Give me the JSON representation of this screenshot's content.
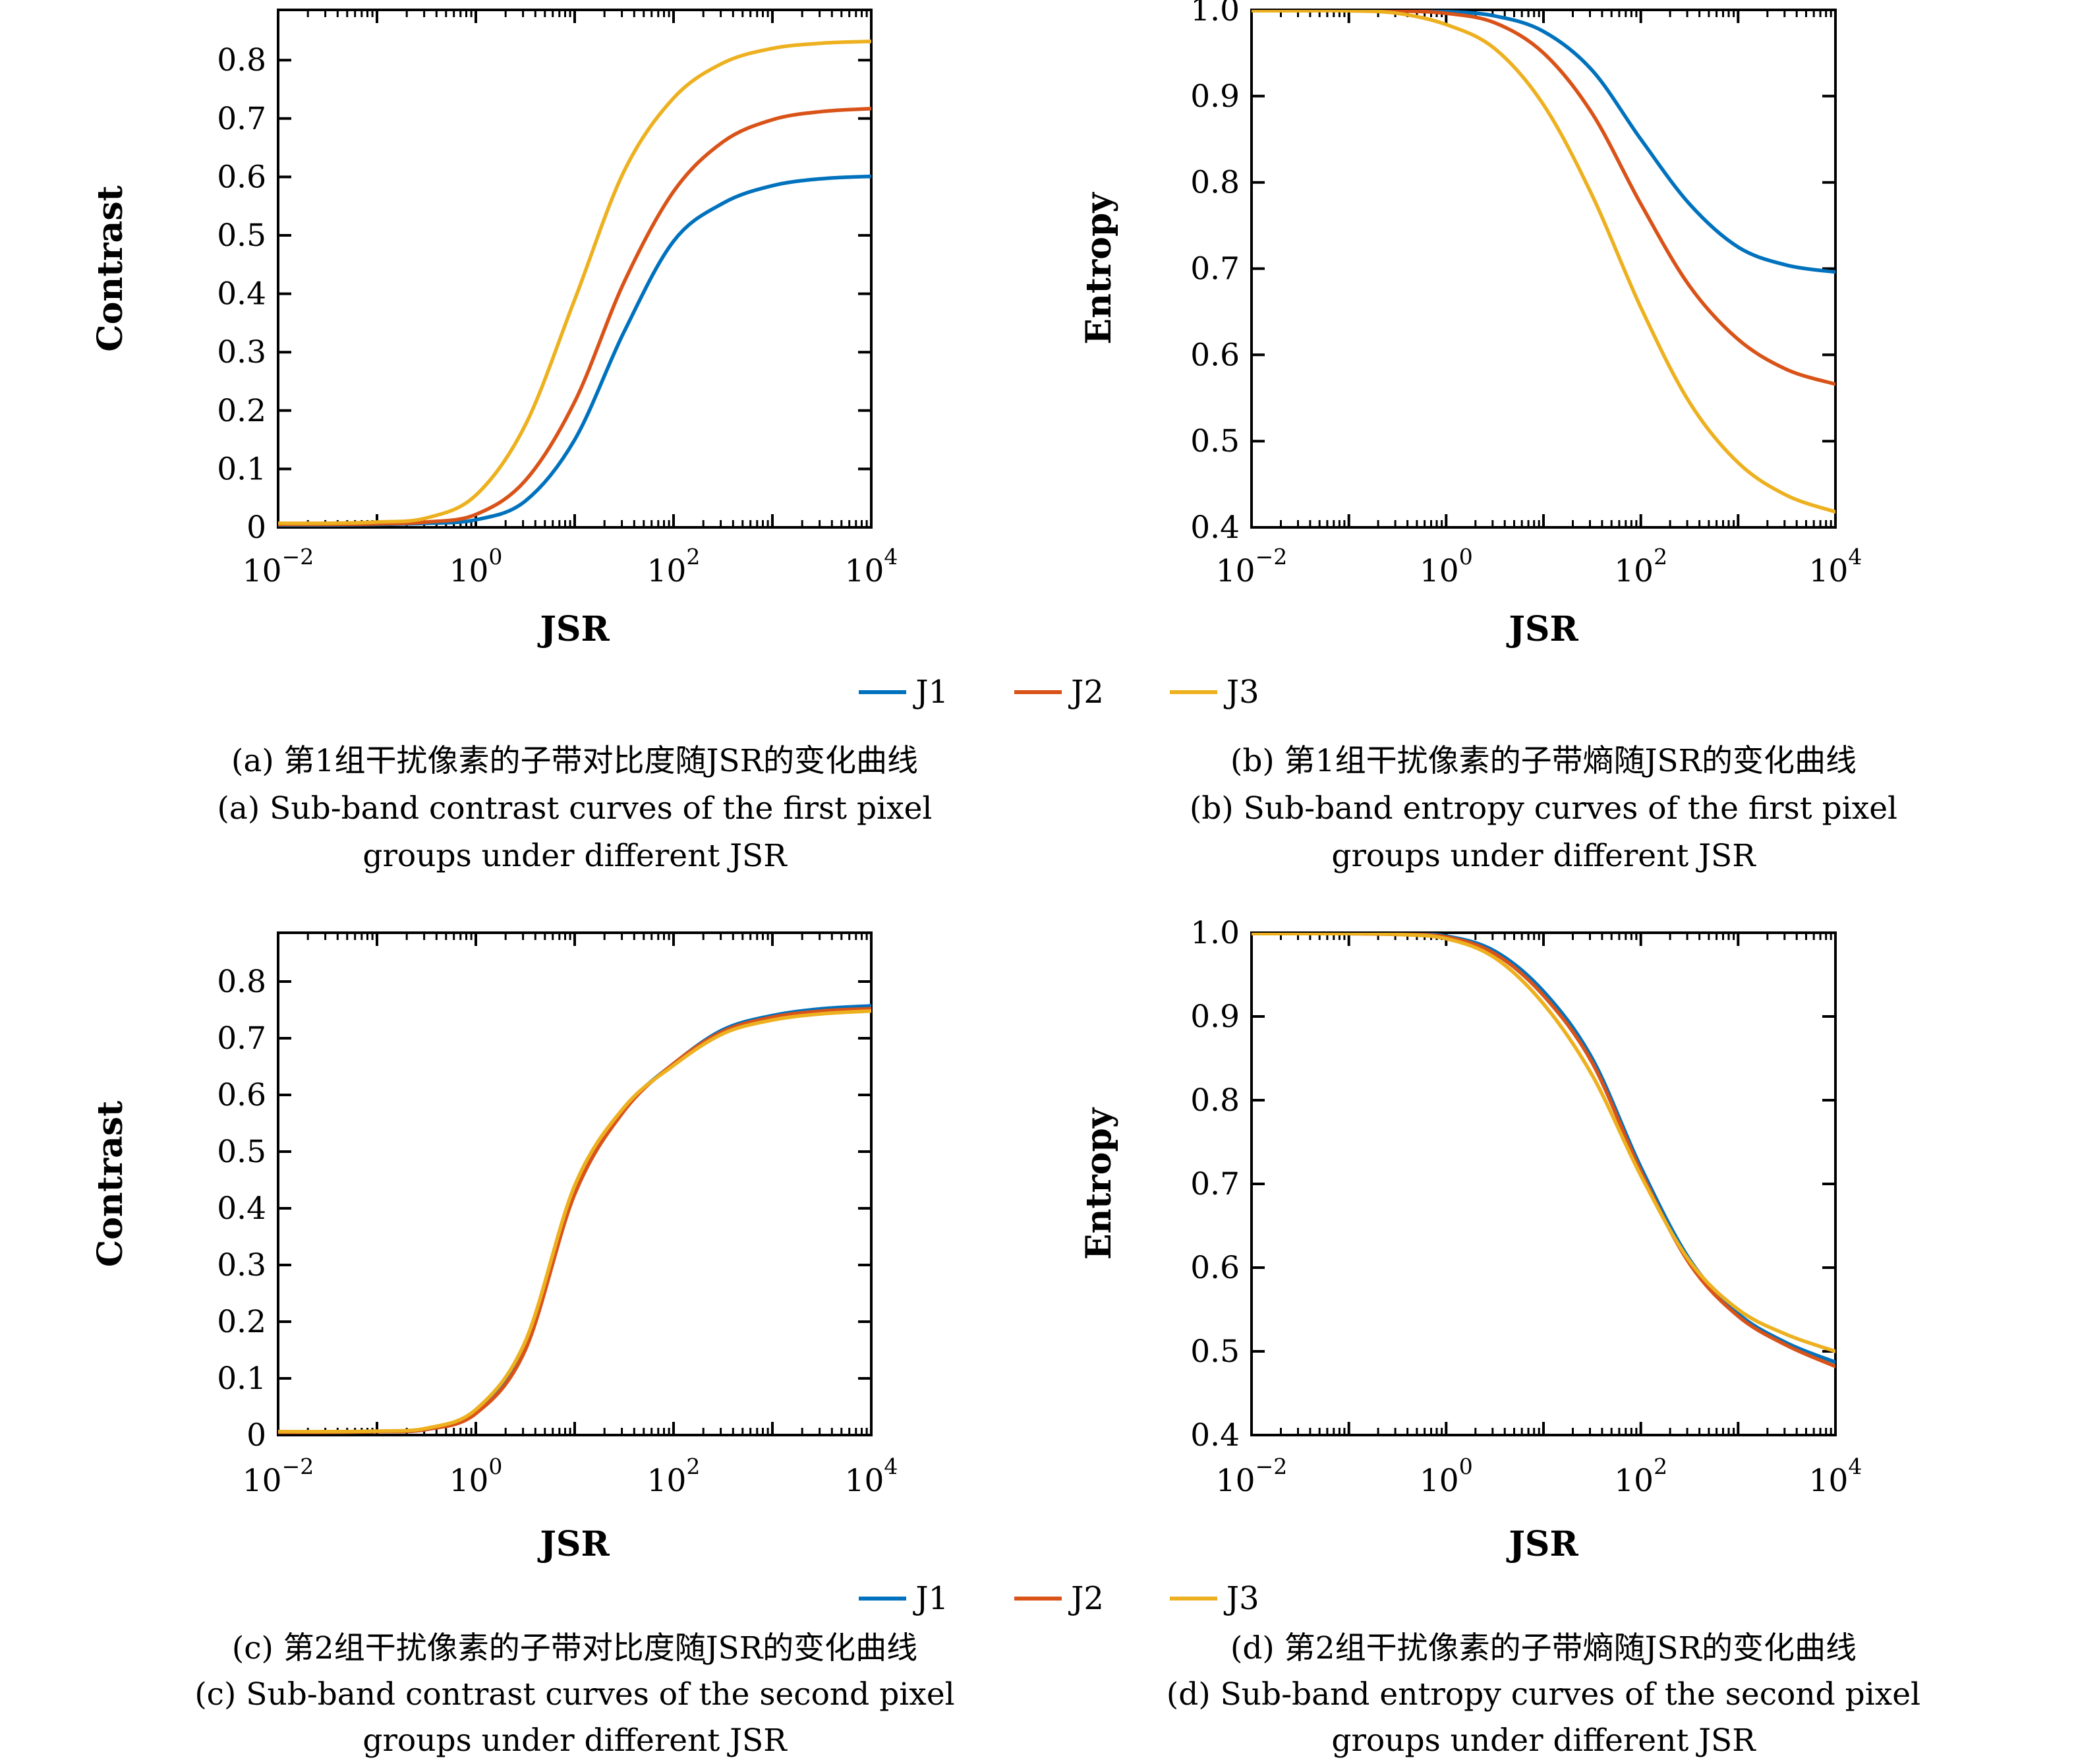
{
  "legend": {
    "items": [
      {
        "label": "J1",
        "color": "#0072BD"
      },
      {
        "label": "J2",
        "color": "#D95319"
      },
      {
        "label": "J3",
        "color": "#EDB120"
      }
    ]
  },
  "captions": {
    "a": {
      "zh": "(a) 第1组干扰像素的子带对比度随JSR的变化曲线",
      "en1": "(a) Sub-band contrast curves of the first pixel",
      "en2": "groups under different JSR"
    },
    "b": {
      "zh": "(b) 第1组干扰像素的子带熵随JSR的变化曲线",
      "en1": "(b) Sub-band entropy curves of the first pixel",
      "en2": "groups under different JSR"
    },
    "c": {
      "zh": "(c) 第2组干扰像素的子带对比度随JSR的变化曲线",
      "en1": "(c) Sub-band contrast curves of the second pixel",
      "en2": "groups under different JSR"
    },
    "d": {
      "zh": "(d) 第2组干扰像素的子带熵随JSR的变化曲线",
      "en1": "(d) Sub-band entropy curves of the second pixel",
      "en2": "groups under different JSR"
    }
  },
  "chart_data": [
    {
      "id": "a",
      "type": "line",
      "xlabel": "JSR",
      "ylabel": "Contrast",
      "xscale": "log10",
      "xlim_log10": [
        -2,
        4
      ],
      "ylim": [
        0,
        0.886
      ],
      "yticks": [
        0,
        0.1,
        0.2,
        0.3,
        0.4,
        0.5,
        0.6,
        0.7,
        0.8
      ],
      "ytick_labels": [
        "0",
        "0.1",
        "0.2",
        "0.3",
        "0.4",
        "0.5",
        "0.6",
        "0.7",
        "0.8"
      ],
      "xticks_log10": [
        -2,
        0,
        2,
        4
      ],
      "xtick_exponents": [
        "-2",
        "0",
        "2",
        "4"
      ],
      "x_log10": [
        -2,
        -1.5,
        -1,
        -0.5,
        0,
        0.5,
        1,
        1.5,
        2,
        2.5,
        3,
        3.5,
        4
      ],
      "series": [
        {
          "name": "J1",
          "color": "#0072BD",
          "values": [
            0.004,
            0.004,
            0.005,
            0.007,
            0.013,
            0.045,
            0.15,
            0.335,
            0.49,
            0.555,
            0.585,
            0.597,
            0.601
          ]
        },
        {
          "name": "J2",
          "color": "#D95319",
          "values": [
            0.005,
            0.005,
            0.006,
            0.009,
            0.022,
            0.08,
            0.215,
            0.42,
            0.575,
            0.66,
            0.698,
            0.712,
            0.717
          ]
        },
        {
          "name": "J3",
          "color": "#EDB120",
          "values": [
            0.007,
            0.007,
            0.009,
            0.016,
            0.055,
            0.175,
            0.39,
            0.61,
            0.735,
            0.795,
            0.82,
            0.829,
            0.832
          ]
        }
      ]
    },
    {
      "id": "b",
      "type": "line",
      "xlabel": "JSR",
      "ylabel": "Entropy",
      "xscale": "log10",
      "xlim_log10": [
        -2,
        4
      ],
      "ylim": [
        0.4,
        1.0
      ],
      "yticks": [
        0.4,
        0.5,
        0.6,
        0.7,
        0.8,
        0.9,
        1.0
      ],
      "ytick_labels": [
        "0.4",
        "0.5",
        "0.6",
        "0.7",
        "0.8",
        "0.9",
        "1.0"
      ],
      "xticks_log10": [
        -2,
        0,
        2,
        4
      ],
      "xtick_exponents": [
        "-2",
        "0",
        "2",
        "4"
      ],
      "x_log10": [
        -2,
        -1.5,
        -1,
        -0.5,
        0,
        0.5,
        1,
        1.5,
        2,
        2.5,
        3,
        3.5,
        4
      ],
      "series": [
        {
          "name": "J1",
          "color": "#0072BD",
          "values": [
            1.0,
            1.0,
            1.0,
            0.999,
            0.998,
            0.993,
            0.975,
            0.93,
            0.85,
            0.775,
            0.725,
            0.704,
            0.696
          ]
        },
        {
          "name": "J2",
          "color": "#D95319",
          "values": [
            1.0,
            1.0,
            0.999,
            0.999,
            0.996,
            0.985,
            0.95,
            0.88,
            0.775,
            0.68,
            0.618,
            0.583,
            0.566
          ]
        },
        {
          "name": "J3",
          "color": "#EDB120",
          "values": [
            0.999,
            0.999,
            0.999,
            0.996,
            0.983,
            0.955,
            0.89,
            0.785,
            0.655,
            0.545,
            0.475,
            0.437,
            0.418
          ]
        }
      ]
    },
    {
      "id": "c",
      "type": "line",
      "xlabel": "JSR",
      "ylabel": "Contrast",
      "xscale": "log10",
      "xlim_log10": [
        -2,
        4
      ],
      "ylim": [
        0,
        0.886
      ],
      "yticks": [
        0,
        0.1,
        0.2,
        0.3,
        0.4,
        0.5,
        0.6,
        0.7,
        0.8
      ],
      "ytick_labels": [
        "0",
        "0.1",
        "0.2",
        "0.3",
        "0.4",
        "0.5",
        "0.6",
        "0.7",
        "0.8"
      ],
      "xticks_log10": [
        -2,
        0,
        2,
        4
      ],
      "xtick_exponents": [
        "-2",
        "0",
        "2",
        "4"
      ],
      "x_log10": [
        -2,
        -1.5,
        -1,
        -0.5,
        0,
        0.5,
        1,
        1.5,
        2,
        2.5,
        3,
        3.5,
        4
      ],
      "series": [
        {
          "name": "J1",
          "color": "#0072BD",
          "values": [
            0.005,
            0.005,
            0.006,
            0.01,
            0.04,
            0.155,
            0.43,
            0.575,
            0.655,
            0.715,
            0.74,
            0.752,
            0.757
          ]
        },
        {
          "name": "J2",
          "color": "#D95319",
          "values": [
            0.005,
            0.005,
            0.006,
            0.01,
            0.038,
            0.15,
            0.425,
            0.572,
            0.655,
            0.712,
            0.737,
            0.748,
            0.752
          ]
        },
        {
          "name": "J3",
          "color": "#EDB120",
          "values": [
            0.006,
            0.006,
            0.007,
            0.012,
            0.045,
            0.165,
            0.44,
            0.578,
            0.652,
            0.708,
            0.732,
            0.743,
            0.748
          ]
        }
      ]
    },
    {
      "id": "d",
      "type": "line",
      "xlabel": "JSR",
      "ylabel": "Entropy",
      "xscale": "log10",
      "xlim_log10": [
        -2,
        4
      ],
      "ylim": [
        0.4,
        1.0
      ],
      "yticks": [
        0.4,
        0.5,
        0.6,
        0.7,
        0.8,
        0.9,
        1.0
      ],
      "ytick_labels": [
        "0.4",
        "0.5",
        "0.6",
        "0.7",
        "0.8",
        "0.9",
        "1.0"
      ],
      "xticks_log10": [
        -2,
        0,
        2,
        4
      ],
      "xtick_exponents": [
        "-2",
        "0",
        "2",
        "4"
      ],
      "x_log10": [
        -2,
        -1.5,
        -1,
        -0.5,
        0,
        0.5,
        1,
        1.5,
        2,
        2.5,
        3,
        3.5,
        4
      ],
      "series": [
        {
          "name": "J1",
          "color": "#0072BD",
          "values": [
            1.0,
            1.0,
            0.999,
            0.999,
            0.996,
            0.978,
            0.93,
            0.85,
            0.72,
            0.61,
            0.545,
            0.51,
            0.487
          ]
        },
        {
          "name": "J2",
          "color": "#D95319",
          "values": [
            1.0,
            1.0,
            0.999,
            0.998,
            0.995,
            0.975,
            0.925,
            0.845,
            0.715,
            0.605,
            0.542,
            0.507,
            0.482
          ]
        },
        {
          "name": "J3",
          "color": "#EDB120",
          "values": [
            0.999,
            0.999,
            0.999,
            0.998,
            0.993,
            0.97,
            0.915,
            0.83,
            0.71,
            0.608,
            0.55,
            0.52,
            0.5
          ]
        }
      ]
    }
  ]
}
